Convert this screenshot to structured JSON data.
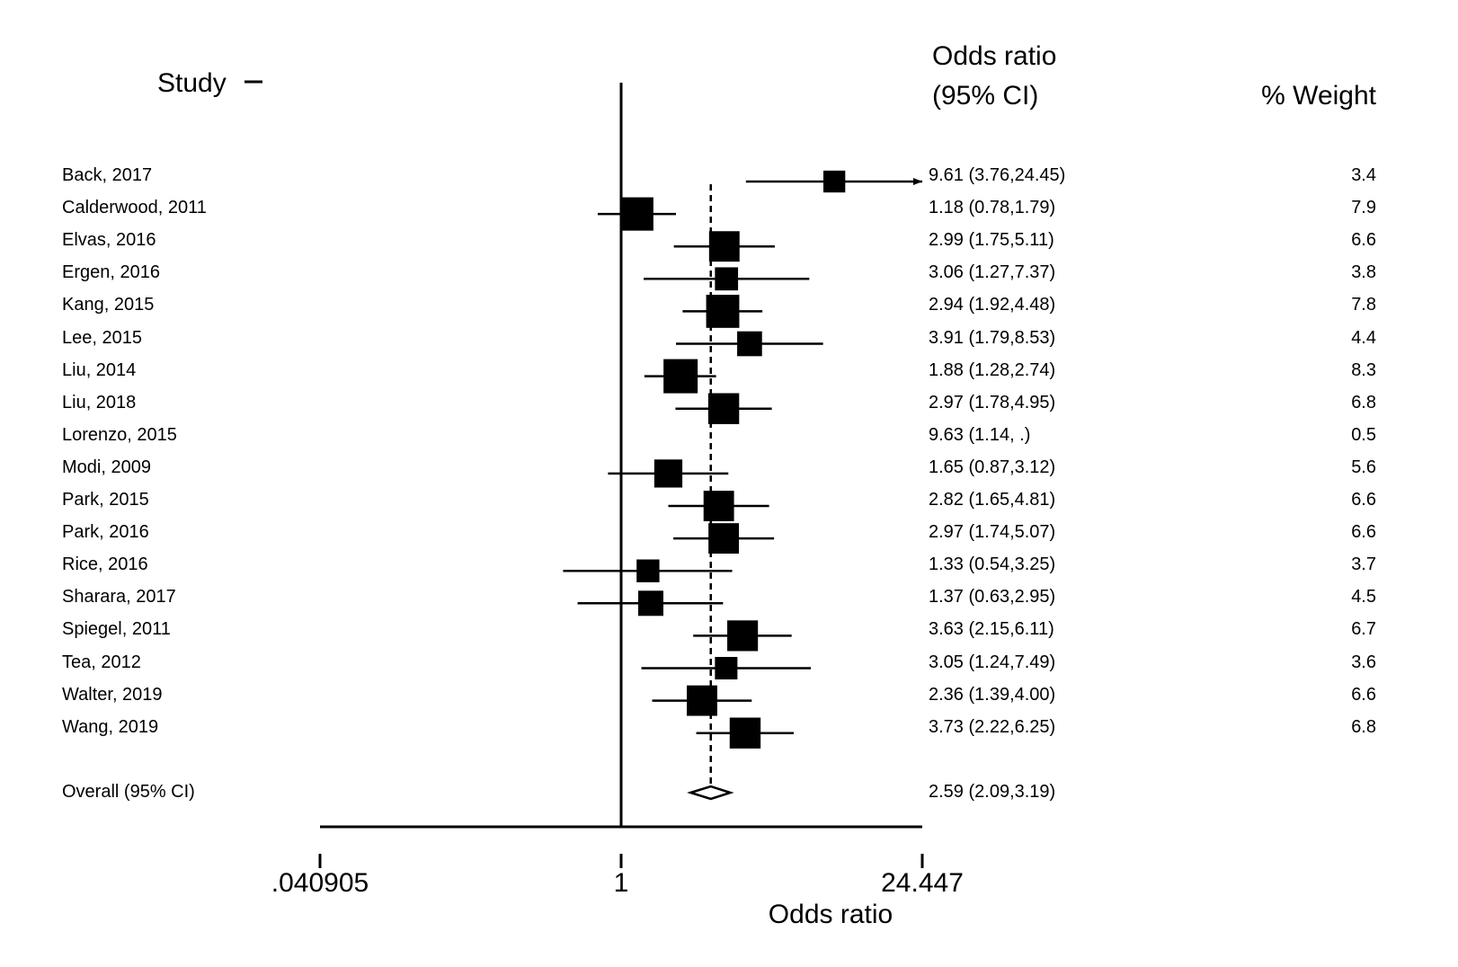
{
  "chart_data": {
    "type": "forest",
    "headers": {
      "study": "Study",
      "or_line1": "Odds ratio",
      "or_line2": "(95% CI)",
      "weight": "% Weight"
    },
    "studies": [
      {
        "label": "Back, 2017",
        "or": 9.61,
        "lo": 3.76,
        "hi": 24.45,
        "text": "9.61 (3.76,24.45)",
        "weight": "3.4",
        "w": 3.4,
        "arrow": true
      },
      {
        "label": "Calderwood, 2011",
        "or": 1.18,
        "lo": 0.78,
        "hi": 1.79,
        "text": "1.18 (0.78,1.79)",
        "weight": "7.9",
        "w": 7.9
      },
      {
        "label": "Elvas, 2016",
        "or": 2.99,
        "lo": 1.75,
        "hi": 5.11,
        "text": "2.99 (1.75,5.11)",
        "weight": "6.6",
        "w": 6.6
      },
      {
        "label": "Ergen, 2016",
        "or": 3.06,
        "lo": 1.27,
        "hi": 7.37,
        "text": "3.06 (1.27,7.37)",
        "weight": "3.8",
        "w": 3.8
      },
      {
        "label": "Kang, 2015",
        "or": 2.94,
        "lo": 1.92,
        "hi": 4.48,
        "text": "2.94 (1.92,4.48)",
        "weight": "7.8",
        "w": 7.8
      },
      {
        "label": "Lee, 2015",
        "or": 3.91,
        "lo": 1.79,
        "hi": 8.53,
        "text": "3.91 (1.79,8.53)",
        "weight": "4.4",
        "w": 4.4
      },
      {
        "label": "Liu, 2014",
        "or": 1.88,
        "lo": 1.28,
        "hi": 2.74,
        "text": "1.88 (1.28,2.74)",
        "weight": "8.3",
        "w": 8.3
      },
      {
        "label": "Liu, 2018",
        "or": 2.97,
        "lo": 1.78,
        "hi": 4.95,
        "text": "2.97 (1.78,4.95)",
        "weight": "6.8",
        "w": 6.8
      },
      {
        "label": "Lorenzo, 2015",
        "or": 9.63,
        "lo": 1.14,
        "hi": null,
        "text": "9.63 (1.14,    .)",
        "weight": "0.5",
        "w": 0.5,
        "hidden": true
      },
      {
        "label": "Modi, 2009",
        "or": 1.65,
        "lo": 0.87,
        "hi": 3.12,
        "text": "1.65 (0.87,3.12)",
        "weight": "5.6",
        "w": 5.6
      },
      {
        "label": "Park, 2015",
        "or": 2.82,
        "lo": 1.65,
        "hi": 4.81,
        "text": "2.82 (1.65,4.81)",
        "weight": "6.6",
        "w": 6.6
      },
      {
        "label": "Park, 2016",
        "or": 2.97,
        "lo": 1.74,
        "hi": 5.07,
        "text": "2.97 (1.74,5.07)",
        "weight": "6.6",
        "w": 6.6
      },
      {
        "label": "Rice, 2016",
        "or": 1.33,
        "lo": 0.54,
        "hi": 3.25,
        "text": "1.33 (0.54,3.25)",
        "weight": "3.7",
        "w": 3.7
      },
      {
        "label": "Sharara, 2017",
        "or": 1.37,
        "lo": 0.63,
        "hi": 2.95,
        "text": "1.37 (0.63,2.95)",
        "weight": "4.5",
        "w": 4.5
      },
      {
        "label": "Spiegel, 2011",
        "or": 3.63,
        "lo": 2.15,
        "hi": 6.11,
        "text": "3.63 (2.15,6.11)",
        "weight": "6.7",
        "w": 6.7
      },
      {
        "label": "Tea, 2012",
        "or": 3.05,
        "lo": 1.24,
        "hi": 7.49,
        "text": "3.05 (1.24,7.49)",
        "weight": "3.6",
        "w": 3.6
      },
      {
        "label": "Walter, 2019",
        "or": 2.36,
        "lo": 1.39,
        "hi": 4.0,
        "text": "2.36 (1.39,4.00)",
        "weight": "6.6",
        "w": 6.6
      },
      {
        "label": "Wang, 2019",
        "or": 3.73,
        "lo": 2.22,
        "hi": 6.25,
        "text": "3.73 (2.22,6.25)",
        "weight": "6.8",
        "w": 6.8
      }
    ],
    "overall": {
      "label": "Overall  (95% CI)",
      "or": 2.59,
      "lo": 2.09,
      "hi": 3.19,
      "text": "2.59 (2.09,3.19)"
    },
    "x_axis": {
      "scale": "log",
      "min": 0.040905,
      "max": 24.447,
      "null_line": 1,
      "ticks": [
        {
          "value": 0.040905,
          "label": ".040905"
        },
        {
          "value": 1,
          "label": "1"
        },
        {
          "value": 24.447,
          "label": "24.447"
        }
      ],
      "label": "Odds ratio"
    },
    "colors": {
      "marks": "#000000",
      "background": "#ffffff"
    }
  }
}
